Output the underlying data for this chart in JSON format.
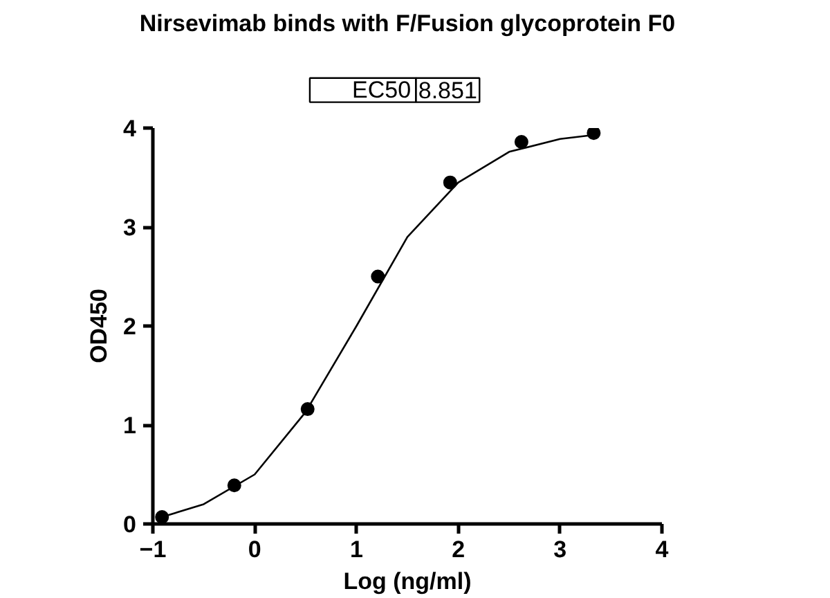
{
  "chart_data": {
    "type": "scatter",
    "title": "Nirsevimab binds with F/Fusion glycoprotein F0",
    "xlabel": "Log (ng/ml)",
    "ylabel": "OD450",
    "annotations": [
      "EC50",
      "8.851"
    ],
    "series": [
      {
        "color": "#000000",
        "marker": "circle",
        "x": [
          -0.91,
          -0.2,
          0.52,
          1.21,
          1.92,
          2.62,
          3.33
        ],
        "values": [
          0.07,
          0.39,
          1.16,
          2.5,
          3.45,
          3.86,
          3.95
        ]
      },
      {
        "type": "line",
        "color": "#000000",
        "x": [
          -0.91,
          -0.5,
          0,
          0.5,
          1,
          1.5,
          2,
          2.5,
          3,
          3.33
        ],
        "values": [
          0.07,
          0.2,
          0.5,
          1.13,
          2.0,
          2.9,
          3.45,
          3.76,
          3.89,
          3.93
        ]
      }
    ],
    "grid": false,
    "xlim": [
      -1,
      4
    ],
    "ylim": [
      0,
      4
    ],
    "xticks": [
      -1,
      0,
      1,
      2,
      3,
      4
    ],
    "yticks": [
      0,
      1,
      2,
      3,
      4
    ]
  }
}
